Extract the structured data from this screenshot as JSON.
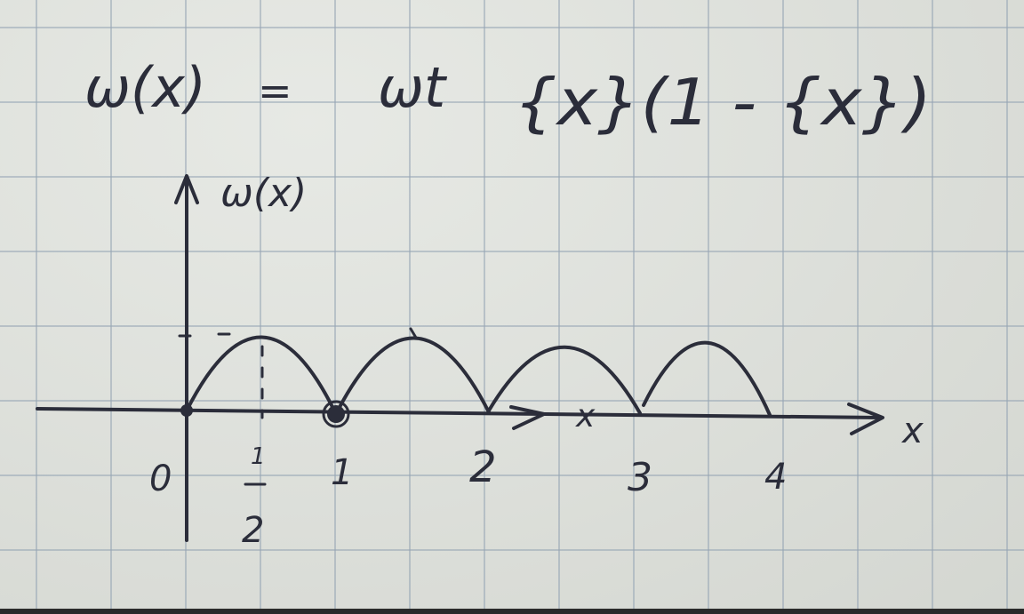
{
  "formula": {
    "lhs": "ω(x)",
    "equals": "=",
    "rhs_prefix": "ωt",
    "rhs_body": "{x}(1 - {x})"
  },
  "axes": {
    "y_label": "ω(x)",
    "x_label": "x",
    "marker_label": "x"
  },
  "ticks": {
    "origin": "0",
    "half_numerator": "1",
    "half_denominator": "2",
    "one": "1",
    "two": "2",
    "three": "3",
    "four": "4"
  },
  "ink_color": "#2b2d3a"
}
